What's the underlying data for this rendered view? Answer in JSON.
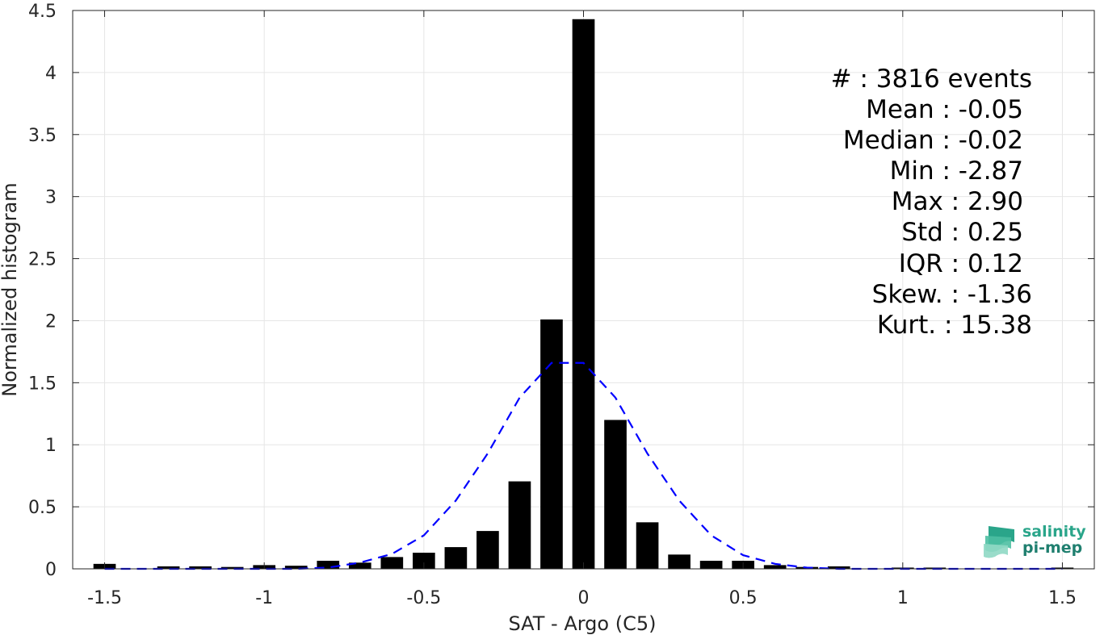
{
  "chart_data": {
    "type": "bar",
    "xlabel": "SAT - Argo (C5)",
    "ylabel": "Normalized histogram",
    "xlim": [
      -1.6,
      1.6
    ],
    "ylim": [
      0,
      4.5
    ],
    "xticks": [
      -1.5,
      -1,
      -0.5,
      0,
      0.5,
      1,
      1.5
    ],
    "xtick_labels": [
      "-1.5",
      "-1",
      "-0.5",
      "0",
      "0.5",
      "1",
      "1.5"
    ],
    "yticks": [
      0,
      0.5,
      1,
      1.5,
      2,
      2.5,
      3,
      3.5,
      4,
      4.5
    ],
    "ytick_labels": [
      "0",
      "0.5",
      "1",
      "1.5",
      "2",
      "2.5",
      "3",
      "3.5",
      "4",
      "4.5"
    ],
    "grid": true,
    "bar_color": "#000000",
    "bar_width": 0.07,
    "series": [
      {
        "type": "bar",
        "x": [
          -1.5,
          -1.3,
          -1.2,
          -1.1,
          -1.0,
          -0.9,
          -0.8,
          -0.7,
          -0.6,
          -0.5,
          -0.4,
          -0.3,
          -0.2,
          -0.1,
          0.0,
          0.1,
          0.2,
          0.3,
          0.4,
          0.5,
          0.6,
          0.7,
          0.8,
          1.0,
          1.1,
          1.5
        ],
        "values": [
          0.04,
          0.02,
          0.02,
          0.015,
          0.03,
          0.025,
          0.065,
          0.05,
          0.095,
          0.13,
          0.175,
          0.305,
          0.705,
          2.01,
          4.43,
          1.2,
          0.375,
          0.115,
          0.065,
          0.065,
          0.03,
          0.015,
          0.02,
          0.01,
          0.01,
          0.01
        ]
      },
      {
        "type": "line",
        "style": "dashed",
        "color": "#0000ff",
        "x": [
          -1.5,
          -1.4,
          -1.3,
          -1.2,
          -1.1,
          -1.0,
          -0.9,
          -0.8,
          -0.7,
          -0.6,
          -0.5,
          -0.4,
          -0.3,
          -0.2,
          -0.1,
          0.0,
          0.1,
          0.2,
          0.3,
          0.4,
          0.5,
          0.6,
          0.7,
          0.8,
          0.9,
          1.0,
          1.1,
          1.2,
          1.3,
          1.4,
          1.5
        ],
        "values": [
          0.0,
          0.0,
          0.0,
          0.0,
          0.0,
          0.0,
          0.0,
          0.01,
          0.05,
          0.12,
          0.27,
          0.55,
          0.93,
          1.38,
          1.66,
          1.66,
          1.38,
          0.93,
          0.55,
          0.27,
          0.11,
          0.04,
          0.01,
          0.0,
          0.0,
          0.0,
          0.0,
          0.0,
          0.0,
          0.0,
          0.0
        ]
      }
    ],
    "annotations": [
      "#  : 3816 events",
      "Mean : -0.05",
      "Median : -0.02",
      "Min : -2.87",
      "Max : 2.90",
      "Std : 0.25",
      "IQR : 0.12",
      "Skew. : -1.36",
      "Kurt. : 15.38"
    ]
  },
  "logo": {
    "line1": "salinity",
    "line2": "pi-mep",
    "icon": "ocean-waves-icon"
  }
}
